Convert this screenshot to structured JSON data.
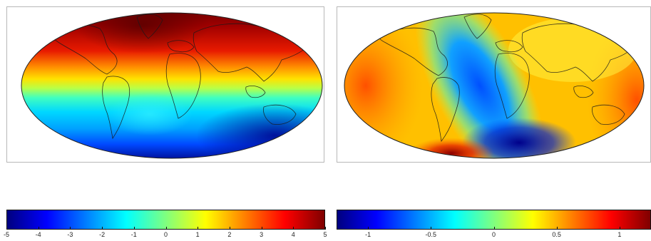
{
  "maps": [
    {
      "id": "left",
      "projection": "mollweide",
      "colormap": "jet",
      "colorbar": {
        "min": -5,
        "max": 5,
        "ticks": [
          "-5",
          "-4",
          "-3",
          "-2",
          "-1",
          "0",
          "1",
          "2",
          "3",
          "4",
          "5"
        ]
      }
    },
    {
      "id": "right",
      "projection": "mollweide",
      "colormap": "jet",
      "colorbar": {
        "min": -1.25,
        "max": 1.25,
        "ticks": [
          "-1",
          "-0.5",
          "0",
          "0.5",
          "1"
        ],
        "tick_values": [
          -1,
          -0.5,
          0,
          0.5,
          1
        ]
      }
    }
  ],
  "colormap_stops": [
    "#00007f",
    "#0000ff",
    "#007fff",
    "#00ffff",
    "#7fff7f",
    "#ffff00",
    "#ff7f00",
    "#ff0000",
    "#7f0000"
  ]
}
